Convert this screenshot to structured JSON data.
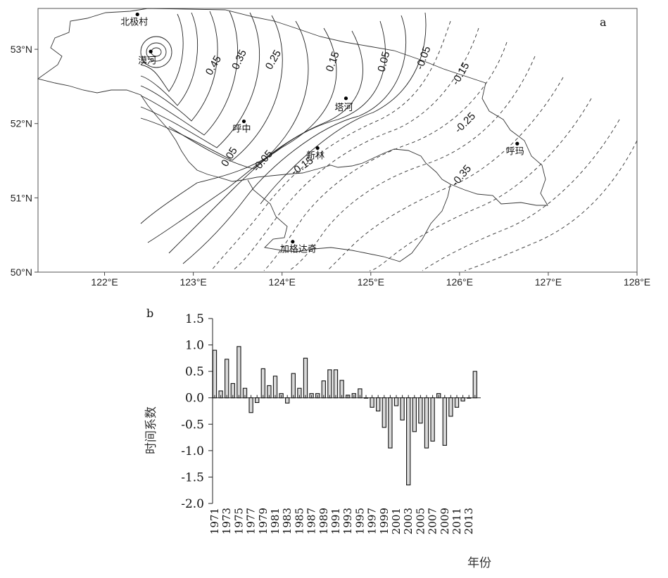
{
  "chart_data": [
    {
      "type": "contour",
      "panel_label": "a",
      "x_ticks": [
        "122°E",
        "123°E",
        "124°E",
        "125°E",
        "126°E",
        "127°E",
        "128°E"
      ],
      "y_ticks": [
        "53°N",
        "52°N",
        "51°N",
        "50°N"
      ],
      "xlim": [
        121.25,
        128
      ],
      "ylim": [
        50,
        53.55
      ],
      "stations": [
        {
          "name": "北极村",
          "lon": 122.37,
          "lat": 53.47
        },
        {
          "name": "漠河",
          "lon": 122.52,
          "lat": 52.97
        },
        {
          "name": "塔河",
          "lon": 124.72,
          "lat": 52.34
        },
        {
          "name": "呼中",
          "lon": 123.57,
          "lat": 52.03
        },
        {
          "name": "新林",
          "lon": 124.4,
          "lat": 51.67
        },
        {
          "name": "呼玛",
          "lon": 126.65,
          "lat": 51.73
        },
        {
          "name": "加格达奇",
          "lon": 124.12,
          "lat": 50.41
        }
      ],
      "contour_labels": [
        "0.45",
        "0.35",
        "0.25",
        "0.15",
        "0.05",
        "-0.05",
        "-0.15",
        "0.05",
        "-0.05",
        "-0.15",
        "-0.25",
        "-0.35"
      ]
    },
    {
      "type": "bar",
      "panel_label": "b",
      "ylabel": "时间系数",
      "xlabel": "年份",
      "ylim": [
        -2.0,
        1.5
      ],
      "yticks": [
        "1.5",
        "1.0",
        "0.5",
        "0.0",
        "-0.5",
        "-1.0",
        "-1.5",
        "-2.0"
      ],
      "xtick_labels": [
        "1971",
        "1973",
        "1975",
        "1977",
        "1979",
        "1981",
        "1983",
        "1985",
        "1987",
        "1989",
        "1991",
        "1993",
        "1995",
        "1997",
        "1999",
        "2001",
        "2003",
        "2005",
        "2007",
        "2009",
        "2011",
        "2013"
      ],
      "categories": [
        1971,
        1972,
        1973,
        1974,
        1975,
        1976,
        1977,
        1978,
        1979,
        1980,
        1981,
        1982,
        1983,
        1984,
        1985,
        1986,
        1987,
        1988,
        1989,
        1990,
        1991,
        1992,
        1993,
        1994,
        1995,
        1996,
        1997,
        1998,
        1999,
        2000,
        2001,
        2002,
        2003,
        2004,
        2005,
        2006,
        2007,
        2008,
        2009,
        2010,
        2011,
        2012,
        2013,
        2014
      ],
      "values": [
        0.9,
        0.13,
        0.73,
        0.27,
        0.97,
        0.18,
        -0.28,
        -0.09,
        0.55,
        0.23,
        0.41,
        0.08,
        -0.1,
        0.46,
        0.18,
        0.75,
        0.08,
        0.08,
        0.32,
        0.53,
        0.53,
        0.33,
        0.05,
        0.08,
        0.17,
        0.0,
        -0.18,
        -0.25,
        -0.56,
        -0.95,
        -0.15,
        -0.42,
        -1.65,
        -0.64,
        -0.48,
        -0.95,
        -0.82,
        0.08,
        -0.9,
        -0.35,
        -0.18,
        -0.06,
        0.0,
        0.5
      ]
    }
  ]
}
